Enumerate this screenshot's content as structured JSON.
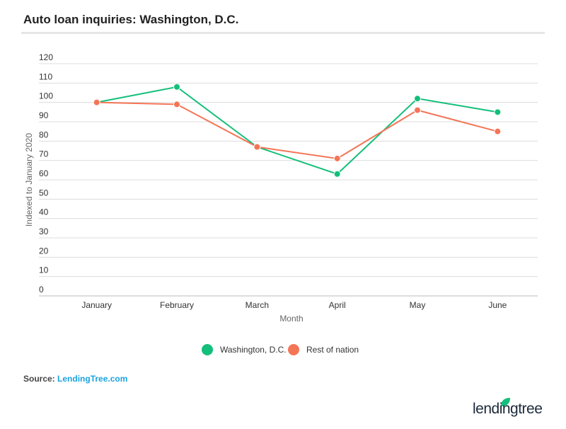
{
  "title": "Auto loan inquiries: Washington, D.C.",
  "source_label": "Source:",
  "source_link": "LendingTree.com",
  "logo": "lendingtree",
  "chart_data": {
    "type": "line",
    "title": "Auto loan inquiries: Washington, D.C.",
    "xlabel": "Month",
    "ylabel": "Indexed to January 2020",
    "categories": [
      "January",
      "February",
      "March",
      "April",
      "May",
      "June"
    ],
    "ylim": [
      0,
      120
    ],
    "yticks": [
      0,
      10,
      20,
      30,
      40,
      50,
      60,
      70,
      80,
      90,
      100,
      110,
      120
    ],
    "grid": true,
    "legend": "bottom",
    "series": [
      {
        "name": "Washington, D.C.",
        "color": "#13bf7a",
        "values": [
          100,
          108,
          77,
          63,
          102,
          95
        ]
      },
      {
        "name": "Rest of nation",
        "color": "#f47556",
        "values": [
          100,
          99,
          77,
          71,
          96,
          85
        ]
      }
    ]
  }
}
